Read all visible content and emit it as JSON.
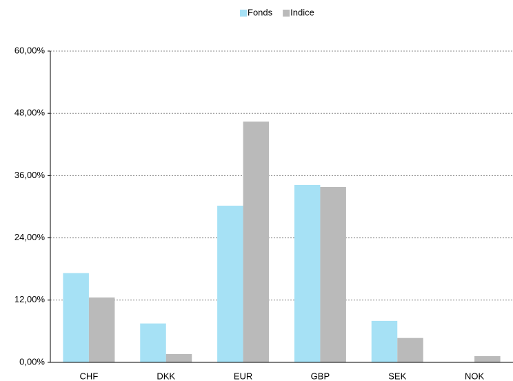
{
  "chart_data": {
    "type": "bar",
    "categories": [
      "CHF",
      "DKK",
      "EUR",
      "GBP",
      "SEK",
      "NOK"
    ],
    "series": [
      {
        "name": "Fonds",
        "color": "#a6e1f5",
        "values": [
          17.2,
          7.5,
          30.2,
          34.2,
          8.0,
          0
        ]
      },
      {
        "name": "Indice",
        "color": "#bababa",
        "values": [
          12.5,
          1.6,
          46.4,
          33.8,
          4.7,
          1.2
        ]
      }
    ],
    "ylim": [
      0,
      60
    ],
    "yticks": [
      {
        "value": 0,
        "label": "0,00%"
      },
      {
        "value": 12,
        "label": "12,00%"
      },
      {
        "value": 24,
        "label": "24,00%"
      },
      {
        "value": 36,
        "label": "36,00%"
      },
      {
        "value": 48,
        "label": "48,00%"
      },
      {
        "value": 60,
        "label": "60,00%"
      }
    ],
    "grid": true,
    "legend": "top"
  }
}
